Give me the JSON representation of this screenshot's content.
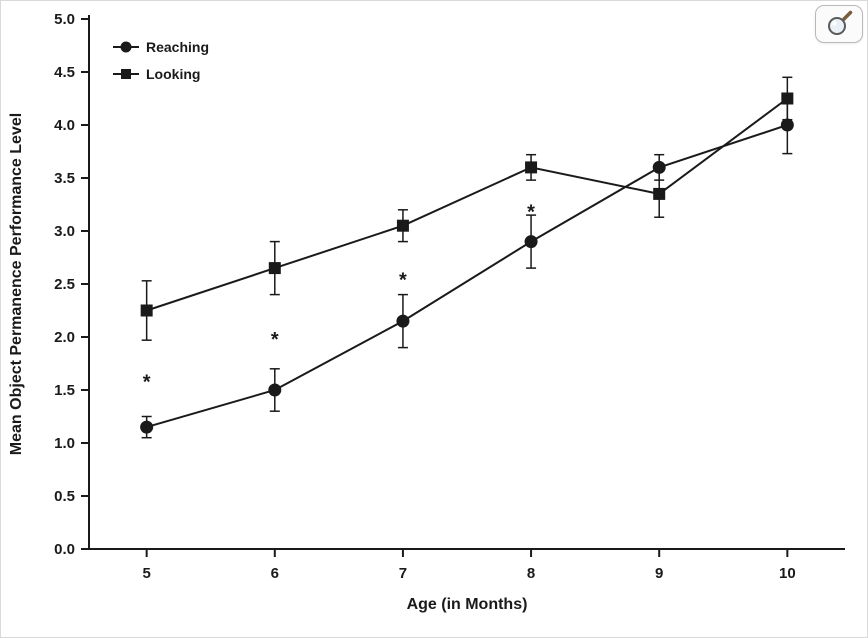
{
  "page": {
    "background": "#ffffff",
    "frame_border": "#d9d9d9",
    "ink_color": "#1a1a1a"
  },
  "overlay": {
    "magnifier_tooltip": "magnifier-icon"
  },
  "chart_data": {
    "type": "line",
    "title": "",
    "xlabel": "Age (in Months)",
    "ylabel": "Mean Object Permanence Performance Level",
    "x": [
      5,
      6,
      7,
      8,
      9,
      10
    ],
    "xlim": [
      4.55,
      10.45
    ],
    "ylim": [
      0.0,
      5.0
    ],
    "ytick_step": 0.5,
    "grid": false,
    "legend_position": "top-left",
    "series": [
      {
        "name": "Reaching",
        "marker": "circle",
        "color": "#1a1a1a",
        "values": [
          1.15,
          1.5,
          2.15,
          2.9,
          3.6,
          4.0
        ],
        "errors": [
          0.1,
          0.2,
          0.25,
          0.25,
          0.12,
          0.27
        ]
      },
      {
        "name": "Looking",
        "marker": "square",
        "color": "#1a1a1a",
        "values": [
          2.25,
          2.65,
          3.05,
          3.6,
          3.35,
          4.25
        ],
        "errors": [
          0.28,
          0.25,
          0.15,
          0.12,
          0.22,
          0.2
        ]
      }
    ],
    "annotations": [
      {
        "x": 5,
        "y": 1.62,
        "text": "*"
      },
      {
        "x": 6,
        "y": 2.02,
        "text": "*"
      },
      {
        "x": 7,
        "y": 2.58,
        "text": "*"
      },
      {
        "x": 8,
        "y": 3.22,
        "text": "*"
      }
    ]
  }
}
